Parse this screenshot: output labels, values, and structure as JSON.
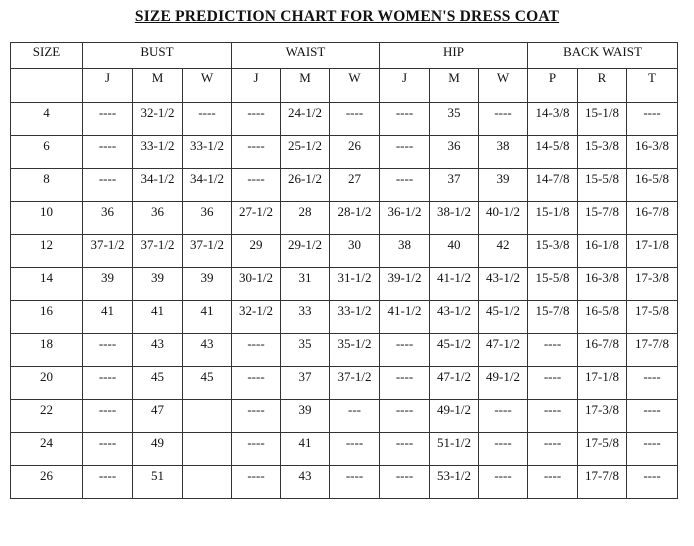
{
  "title": "SIZE PREDICTION CHART FOR WOMEN'S DRESS COAT",
  "header": {
    "size_label": "SIZE",
    "groups": [
      "BUST",
      "WAIST",
      "HIP",
      "BACK WAIST"
    ],
    "subcolumns": [
      "J",
      "M",
      "W",
      "J",
      "M",
      "W",
      "J",
      "M",
      "W",
      "P",
      "R",
      "T"
    ]
  },
  "rows": [
    {
      "size": "4",
      "values": [
        "----",
        "32-1/2",
        "----",
        "----",
        "24-1/2",
        "----",
        "----",
        "35",
        "----",
        "14-3/8",
        "15-1/8",
        "----"
      ]
    },
    {
      "size": "6",
      "values": [
        "----",
        "33-1/2",
        "33-1/2",
        "----",
        "25-1/2",
        "26",
        "----",
        "36",
        "38",
        "14-5/8",
        "15-3/8",
        "16-3/8"
      ]
    },
    {
      "size": "8",
      "values": [
        "----",
        "34-1/2",
        "34-1/2",
        "----",
        "26-1/2",
        "27",
        "----",
        "37",
        "39",
        "14-7/8",
        "15-5/8",
        "16-5/8"
      ]
    },
    {
      "size": "10",
      "values": [
        "36",
        "36",
        "36",
        "27-1/2",
        "28",
        "28-1/2",
        "36-1/2",
        "38-1/2",
        "40-1/2",
        "15-1/8",
        "15-7/8",
        "16-7/8"
      ]
    },
    {
      "size": "12",
      "values": [
        "37-1/2",
        "37-1/2",
        "37-1/2",
        "29",
        "29-1/2",
        "30",
        "38",
        "40",
        "42",
        "15-3/8",
        "16-1/8",
        "17-1/8"
      ]
    },
    {
      "size": "14",
      "values": [
        "39",
        "39",
        "39",
        "30-1/2",
        "31",
        "31-1/2",
        "39-1/2",
        "41-1/2",
        "43-1/2",
        "15-5/8",
        "16-3/8",
        "17-3/8"
      ]
    },
    {
      "size": "16",
      "values": [
        "41",
        "41",
        "41",
        "32-1/2",
        "33",
        "33-1/2",
        "41-1/2",
        "43-1/2",
        "45-1/2",
        "15-7/8",
        "16-5/8",
        "17-5/8"
      ]
    },
    {
      "size": "18",
      "values": [
        "----",
        "43",
        "43",
        "----",
        "35",
        "35-1/2",
        "----",
        "45-1/2",
        "47-1/2",
        "----",
        "16-7/8",
        "17-7/8"
      ]
    },
    {
      "size": "20",
      "values": [
        "----",
        "45",
        "45",
        "----",
        "37",
        "37-1/2",
        "----",
        "47-1/2",
        "49-1/2",
        "----",
        "17-1/8",
        "----"
      ]
    },
    {
      "size": "22",
      "values": [
        "----",
        "47",
        "",
        "----",
        "39",
        "---",
        "----",
        "49-1/2",
        "----",
        "----",
        "17-3/8",
        "----"
      ]
    },
    {
      "size": "24",
      "values": [
        "----",
        "49",
        "",
        "----",
        "41",
        "----",
        "----",
        "51-1/2",
        "----",
        "----",
        "17-5/8",
        "----"
      ]
    },
    {
      "size": "26",
      "values": [
        "----",
        "51",
        "",
        "----",
        "43",
        "----",
        "----",
        "53-1/2",
        "----",
        "----",
        "17-7/8",
        "----"
      ]
    }
  ]
}
